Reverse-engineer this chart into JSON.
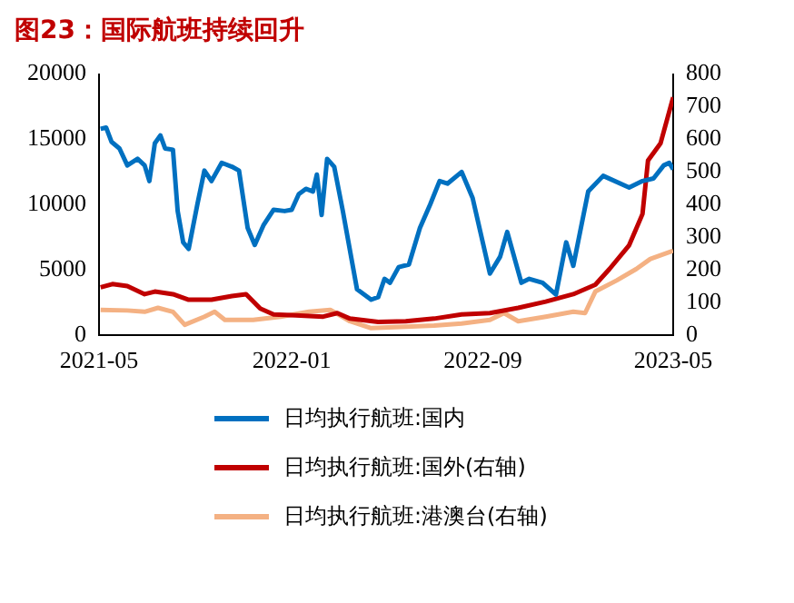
{
  "chart_data": {
    "type": "line",
    "title": "图23：国际航班持续回升",
    "xlim": [
      "2021-05",
      "2023-05"
    ],
    "xticks": [
      "2021-05",
      "2022-01",
      "2022-09",
      "2023-05"
    ],
    "ylim": [
      0,
      20000
    ],
    "yticks": [
      0,
      5000,
      10000,
      15000,
      20000
    ],
    "y2lim": [
      0,
      800
    ],
    "y2ticks": [
      0,
      100,
      200,
      300,
      400,
      500,
      600,
      700,
      800
    ],
    "grid": false,
    "legend": "bottom",
    "marker": "none",
    "line_style": "solid",
    "series": [
      {
        "name": "日均执行航班:国内",
        "color": "#0070c0",
        "x": [
          "2021-05-03",
          "2021-05-10",
          "2021-05-17",
          "2021-05-27",
          "2021-06-06",
          "2021-06-19",
          "2021-06-28",
          "2021-07-04",
          "2021-07-11",
          "2021-07-18",
          "2021-07-24",
          "2021-08-03",
          "2021-08-09",
          "2021-08-16",
          "2021-08-23",
          "2021-09-03",
          "2021-09-12",
          "2021-09-21",
          "2021-10-04",
          "2021-10-17",
          "2021-10-26",
          "2021-11-06",
          "2021-11-15",
          "2021-11-26",
          "2021-12-09",
          "2021-12-23",
          "2022-01-01",
          "2022-01-10",
          "2022-01-19",
          "2022-01-28",
          "2022-02-02",
          "2022-02-08",
          "2022-02-15",
          "2022-02-24",
          "2022-03-07",
          "2022-03-25",
          "2022-04-03",
          "2022-04-12",
          "2022-04-21",
          "2022-04-29",
          "2022-05-06",
          "2022-05-17",
          "2022-05-30",
          "2022-06-13",
          "2022-06-26",
          "2022-07-08",
          "2022-07-18",
          "2022-08-05",
          "2022-08-19",
          "2022-09-10",
          "2022-09-23",
          "2022-10-02",
          "2022-10-20",
          "2022-10-30",
          "2022-11-16",
          "2022-12-03",
          "2022-12-16",
          "2022-12-25",
          "2023-01-13",
          "2023-02-01",
          "2023-03-06",
          "2023-03-23",
          "2023-04-06",
          "2023-04-19",
          "2023-04-26",
          "2023-05-01"
        ],
        "values": [
          15800,
          15900,
          14800,
          14300,
          13000,
          13500,
          13000,
          11800,
          14700,
          15300,
          14300,
          14200,
          9500,
          7100,
          6600,
          10000,
          12600,
          11800,
          13200,
          12900,
          12600,
          8200,
          6900,
          8400,
          9600,
          9500,
          9600,
          10800,
          11200,
          11000,
          12300,
          9200,
          13500,
          12900,
          9500,
          3500,
          3100,
          2700,
          2900,
          4300,
          4000,
          5200,
          5400,
          8200,
          10000,
          11800,
          11600,
          12500,
          10500,
          4700,
          6000,
          7900,
          4000,
          4300,
          4000,
          3100,
          7100,
          5300,
          11000,
          12200,
          11300,
          11800,
          12000,
          13000,
          13200,
          12700
        ]
      },
      {
        "name": "日均执行航班:国外(右轴)",
        "color": "#c00000",
        "axis": "y2",
        "x": [
          "2021-05-03",
          "2021-05-18",
          "2021-06-06",
          "2021-06-28",
          "2021-07-11",
          "2021-08-03",
          "2021-08-23",
          "2021-09-21",
          "2021-10-17",
          "2021-11-04",
          "2021-11-22",
          "2021-12-09",
          "2022-01-06",
          "2022-02-10",
          "2022-02-28",
          "2022-03-16",
          "2022-04-21",
          "2022-05-26",
          "2022-07-01",
          "2022-08-05",
          "2022-09-10",
          "2022-10-16",
          "2022-11-20",
          "2022-12-25",
          "2023-01-22",
          "2023-02-09",
          "2023-03-06",
          "2023-03-23",
          "2023-03-30",
          "2023-04-15",
          "2023-05-01"
        ],
        "values": [
          146,
          156,
          150,
          125,
          133,
          125,
          108,
          108,
          119,
          125,
          81,
          63,
          60,
          56,
          67,
          50,
          40,
          42,
          50,
          63,
          67,
          83,
          102,
          125,
          154,
          202,
          275,
          371,
          535,
          588,
          729
        ]
      },
      {
        "name": "日均执行航班:港澳台(右轴)",
        "color": "#f4b183",
        "axis": "y2",
        "x": [
          "2021-05-03",
          "2021-06-06",
          "2021-06-28",
          "2021-07-15",
          "2021-08-03",
          "2021-08-18",
          "2021-09-12",
          "2021-09-25",
          "2021-10-08",
          "2021-11-13",
          "2021-12-18",
          "2022-01-23",
          "2022-02-19",
          "2022-03-16",
          "2022-04-12",
          "2022-05-26",
          "2022-07-01",
          "2022-08-05",
          "2022-09-10",
          "2022-09-28",
          "2022-10-16",
          "2022-11-20",
          "2022-12-25",
          "2023-01-09",
          "2023-01-22",
          "2023-02-18",
          "2023-03-15",
          "2023-04-02",
          "2023-05-01"
        ],
        "values": [
          77,
          75,
          71,
          83,
          71,
          31,
          56,
          71,
          46,
          46,
          56,
          71,
          77,
          42,
          21,
          25,
          29,
          35,
          46,
          67,
          42,
          56,
          71,
          67,
          133,
          167,
          202,
          233,
          258
        ]
      }
    ]
  }
}
